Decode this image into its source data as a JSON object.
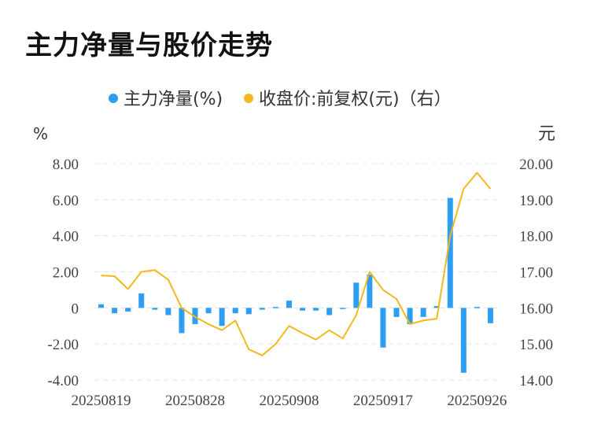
{
  "title": "主力净量与股价走势",
  "chart_data": {
    "type": "bar+line",
    "legend": [
      {
        "label": "主力净量(%)",
        "color": "#2e9ef2"
      },
      {
        "label": "收盘价:前复权(元)（右）",
        "color": "#f2b81e"
      }
    ],
    "y_left_unit": "%",
    "y_right_unit": "元",
    "y_left_ticks": [
      "8.00",
      "6.00",
      "4.00",
      "2.00",
      "0",
      "-2.00",
      "-4.00"
    ],
    "y_right_ticks": [
      "20.00",
      "19.00",
      "18.00",
      "17.00",
      "16.00",
      "15.00",
      "14.00"
    ],
    "ylim_left": [
      -4,
      8
    ],
    "ylim_right": [
      14,
      20
    ],
    "x_tick_labels": [
      "20250819",
      "20250828",
      "20250908",
      "20250917",
      "20250926"
    ],
    "x_tick_indices": [
      0,
      7,
      14,
      21,
      28
    ],
    "bars": [
      0.2,
      -0.3,
      -0.2,
      0.8,
      -0.1,
      -0.4,
      -1.4,
      -0.9,
      -0.3,
      -1.0,
      -0.3,
      -0.35,
      -0.1,
      0.05,
      0.4,
      -0.15,
      -0.15,
      -0.4,
      0.0,
      1.4,
      1.85,
      -2.2,
      -0.5,
      -0.9,
      -0.5,
      0.1,
      6.1,
      -3.6,
      0.05,
      -0.85
    ],
    "line": [
      16.9,
      16.88,
      16.52,
      17.0,
      17.05,
      16.78,
      16.0,
      15.75,
      15.55,
      15.38,
      15.65,
      14.85,
      14.68,
      15.0,
      15.5,
      15.3,
      15.12,
      15.38,
      15.15,
      15.8,
      17.0,
      16.5,
      16.25,
      15.55,
      15.65,
      15.7,
      18.0,
      19.3,
      19.75,
      19.3
    ]
  }
}
